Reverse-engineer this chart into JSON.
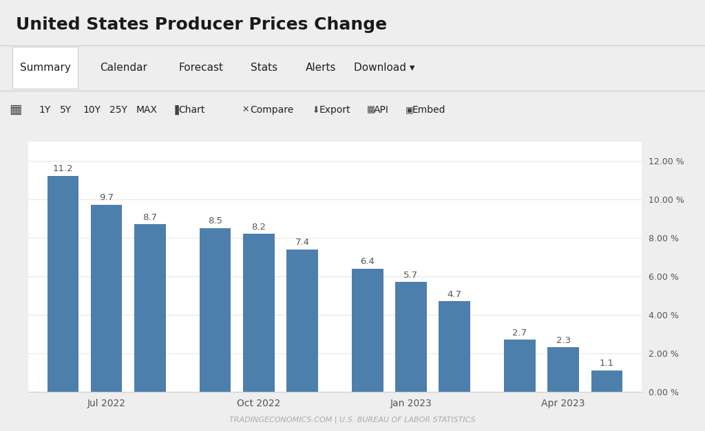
{
  "title": "United States Producer Prices Change",
  "values": [
    11.2,
    9.7,
    8.7,
    8.5,
    8.2,
    7.4,
    6.4,
    5.7,
    4.7,
    2.7,
    2.3,
    1.1
  ],
  "bar_positions": [
    0,
    1,
    2,
    3.5,
    4.5,
    5.5,
    7,
    8,
    9,
    10.5,
    11.5,
    12.5
  ],
  "x_tick_labels": [
    "Jul 2022",
    "Oct 2022",
    "Jan 2023",
    "Apr 2023"
  ],
  "x_tick_positions": [
    1.0,
    4.5,
    8.0,
    11.5
  ],
  "bar_color": "#4d7fad",
  "background_color": "#eeeeee",
  "chart_bg_color": "#ffffff",
  "nav_bg_color": "#f2f2f2",
  "ylim": [
    0,
    13
  ],
  "yticks": [
    0,
    2,
    4,
    6,
    8,
    10,
    12
  ],
  "ytick_labels": [
    "0.00 %",
    "2.00 %",
    "4.00 %",
    "6.00 %",
    "8.00 %",
    "10.00 %",
    "12.00 %"
  ],
  "watermark": "TRADINGECONOMICS.COM | U.S. BUREAU OF LABOR STATISTICS",
  "nav_items": [
    "Summary",
    "Calendar",
    "Forecast",
    "Stats",
    "Alerts",
    "Download ▾"
  ],
  "toolbar_items": [
    "1Y",
    "5Y",
    "10Y",
    "25Y",
    "MAX",
    "▮ Chart",
    "✶ Compare",
    "⇓ Export",
    "⊞ API",
    "▣ Embed"
  ],
  "title_fontsize": 18,
  "bar_label_fontsize": 9.5,
  "axis_fontsize": 9,
  "nav_fontsize": 11,
  "toolbar_fontsize": 10
}
